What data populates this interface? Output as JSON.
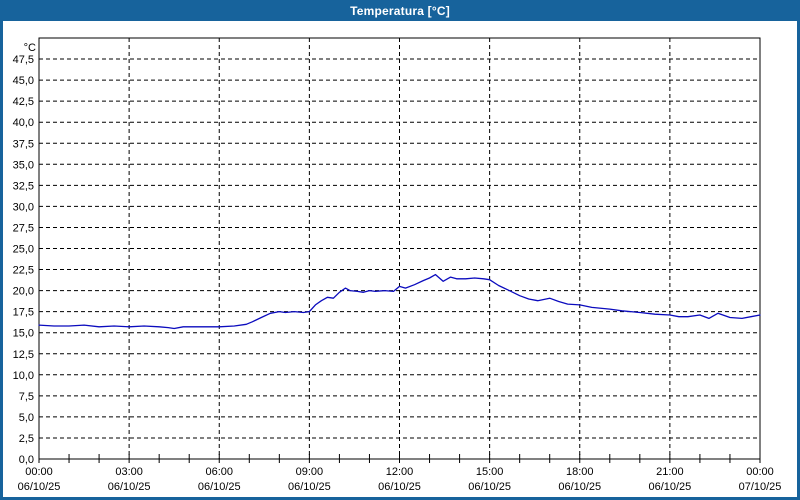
{
  "window": {
    "title": "Temperatura [°C]"
  },
  "colors": {
    "frame_blue": "#17639c",
    "plot_border": "#000000",
    "grid": "#000000",
    "line": "#0b0bbe",
    "label": "#000000",
    "background": "#ffffff",
    "title_text": "#ffffff"
  },
  "chart_data": {
    "type": "line",
    "title": "Temperatura [°C]",
    "unit_label": "°C",
    "grid": "dashed",
    "legend": "none",
    "ylim": [
      0,
      50
    ],
    "ytick_step": 2.5,
    "ytick_labels": [
      "0,0",
      "2,5",
      "5,0",
      "7,5",
      "10,0",
      "12,5",
      "15,0",
      "17,5",
      "20,0",
      "22,5",
      "25,0",
      "27,5",
      "30,0",
      "32,5",
      "35,0",
      "37,5",
      "40,0",
      "42,5",
      "45,0",
      "47,5"
    ],
    "x_range": [
      0,
      24
    ],
    "minor_tick_hours": 1,
    "xticks": [
      {
        "hour": 0,
        "time": "00:00",
        "date": "06/10/25"
      },
      {
        "hour": 3,
        "time": "03:00",
        "date": "06/10/25"
      },
      {
        "hour": 6,
        "time": "06:00",
        "date": "06/10/25"
      },
      {
        "hour": 9,
        "time": "09:00",
        "date": "06/10/25"
      },
      {
        "hour": 12,
        "time": "12:00",
        "date": "06/10/25"
      },
      {
        "hour": 15,
        "time": "15:00",
        "date": "06/10/25"
      },
      {
        "hour": 18,
        "time": "18:00",
        "date": "06/10/25"
      },
      {
        "hour": 21,
        "time": "21:00",
        "date": "06/10/25"
      },
      {
        "hour": 24,
        "time": "00:00",
        "date": "07/10/25"
      }
    ],
    "series": [
      {
        "name": "Temperatura",
        "color": "#0b0bbe",
        "points": [
          [
            0,
            15.9
          ],
          [
            0.5,
            15.8
          ],
          [
            1,
            15.8
          ],
          [
            1.5,
            15.9
          ],
          [
            2,
            15.7
          ],
          [
            2.5,
            15.8
          ],
          [
            3,
            15.7
          ],
          [
            3.5,
            15.8
          ],
          [
            4,
            15.7
          ],
          [
            4.3,
            15.6
          ],
          [
            4.5,
            15.5
          ],
          [
            4.8,
            15.7
          ],
          [
            5.5,
            15.7
          ],
          [
            6,
            15.7
          ],
          [
            6.5,
            15.8
          ],
          [
            6.9,
            16.0
          ],
          [
            7.1,
            16.3
          ],
          [
            7.4,
            16.8
          ],
          [
            7.7,
            17.3
          ],
          [
            8,
            17.5
          ],
          [
            8.2,
            17.4
          ],
          [
            8.5,
            17.5
          ],
          [
            8.8,
            17.4
          ],
          [
            9,
            17.5
          ],
          [
            9.2,
            18.3
          ],
          [
            9.4,
            18.8
          ],
          [
            9.6,
            19.2
          ],
          [
            9.8,
            19.1
          ],
          [
            10,
            19.8
          ],
          [
            10.2,
            20.3
          ],
          [
            10.35,
            20.0
          ],
          [
            10.6,
            19.9
          ],
          [
            10.8,
            19.8
          ],
          [
            11,
            20.0
          ],
          [
            11.2,
            19.9
          ],
          [
            11.5,
            20.0
          ],
          [
            11.8,
            19.9
          ],
          [
            12,
            20.5
          ],
          [
            12.2,
            20.3
          ],
          [
            12.5,
            20.7
          ],
          [
            12.8,
            21.2
          ],
          [
            13,
            21.5
          ],
          [
            13.2,
            21.9
          ],
          [
            13.45,
            21.1
          ],
          [
            13.7,
            21.6
          ],
          [
            13.9,
            21.4
          ],
          [
            14.2,
            21.4
          ],
          [
            14.5,
            21.5
          ],
          [
            14.8,
            21.4
          ],
          [
            15,
            21.3
          ],
          [
            15.3,
            20.6
          ],
          [
            15.6,
            20.1
          ],
          [
            16,
            19.4
          ],
          [
            16.3,
            19.0
          ],
          [
            16.6,
            18.8
          ],
          [
            17,
            19.1
          ],
          [
            17.3,
            18.7
          ],
          [
            17.6,
            18.4
          ],
          [
            18,
            18.3
          ],
          [
            18.4,
            18.0
          ],
          [
            19,
            17.8
          ],
          [
            19.4,
            17.6
          ],
          [
            20,
            17.4
          ],
          [
            20.5,
            17.2
          ],
          [
            21,
            17.1
          ],
          [
            21.3,
            16.9
          ],
          [
            21.6,
            16.9
          ],
          [
            22,
            17.1
          ],
          [
            22.3,
            16.7
          ],
          [
            22.6,
            17.3
          ],
          [
            23,
            16.8
          ],
          [
            23.4,
            16.7
          ],
          [
            23.7,
            16.9
          ],
          [
            24,
            17.1
          ]
        ]
      }
    ]
  }
}
